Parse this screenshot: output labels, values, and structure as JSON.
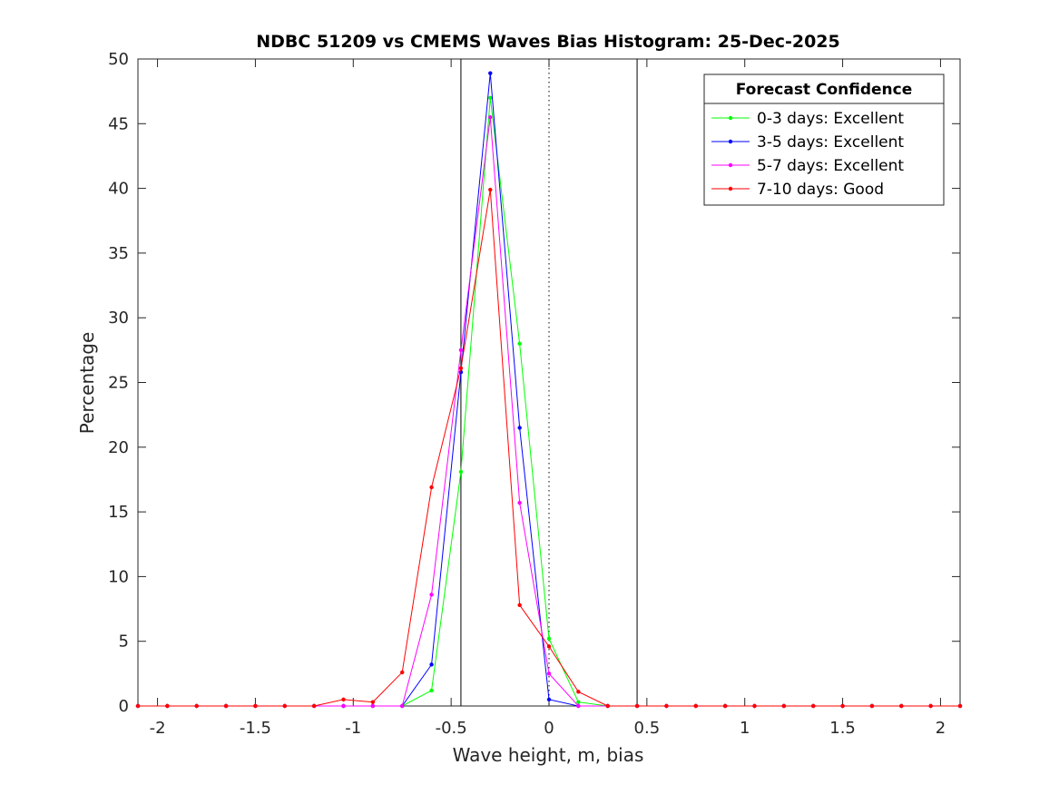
{
  "chart_data": {
    "type": "line",
    "title": "NDBC 51209 vs CMEMS Waves Bias Histogram: 25-Dec-2025",
    "xlabel": "Wave height, m, bias",
    "ylabel": "Percentage",
    "xlim": [
      -2.1,
      2.1
    ],
    "ylim": [
      0,
      50
    ],
    "xticks": [
      -2,
      -1.5,
      -1,
      -0.5,
      0,
      0.5,
      1,
      1.5,
      2
    ],
    "xtick_labels": [
      "-2",
      "-1.5",
      "-1",
      "-0.5",
      "0",
      "0.5",
      "1",
      "1.5",
      "2"
    ],
    "yticks": [
      0,
      5,
      10,
      15,
      20,
      25,
      30,
      35,
      40,
      45,
      50
    ],
    "ytick_labels": [
      "0",
      "5",
      "10",
      "15",
      "20",
      "25",
      "30",
      "35",
      "40",
      "45",
      "50"
    ],
    "vertical_lines": [
      {
        "x": -0.45,
        "style": "solid"
      },
      {
        "x": 0,
        "style": "dotted"
      },
      {
        "x": 0.45,
        "style": "solid"
      }
    ],
    "legend": {
      "title": "Forecast Confidence",
      "position": "top-right"
    },
    "x": [
      -2.1,
      -1.95,
      -1.8,
      -1.65,
      -1.5,
      -1.35,
      -1.2,
      -1.05,
      -0.9,
      -0.75,
      -0.6,
      -0.45,
      -0.3,
      -0.15,
      0,
      0.15,
      0.3,
      0.45,
      0.6,
      0.75,
      0.9,
      1.05,
      1.2,
      1.35,
      1.5,
      1.65,
      1.8,
      1.95,
      2.1
    ],
    "series": [
      {
        "name": "0-3 days: Excellent",
        "color": "#00ff00",
        "values": [
          0,
          0,
          0,
          0,
          0,
          0,
          0,
          0,
          0,
          0,
          1.2,
          18.1,
          47.0,
          28.0,
          5.2,
          0.3,
          0,
          0,
          0,
          0,
          0,
          0,
          0,
          0,
          0,
          0,
          0,
          0,
          0
        ]
      },
      {
        "name": "3-5 days: Excellent",
        "color": "#0000ff",
        "values": [
          0,
          0,
          0,
          0,
          0,
          0,
          0,
          0,
          0,
          0,
          3.2,
          25.8,
          48.9,
          21.5,
          0.5,
          0,
          0,
          0,
          0,
          0,
          0,
          0,
          0,
          0,
          0,
          0,
          0,
          0,
          0
        ]
      },
      {
        "name": "5-7 days: Excellent",
        "color": "#ff00ff",
        "values": [
          0,
          0,
          0,
          0,
          0,
          0,
          0,
          0,
          0,
          0,
          8.6,
          27.5,
          45.5,
          15.7,
          2.5,
          0,
          0,
          0,
          0,
          0,
          0,
          0,
          0,
          0,
          0,
          0,
          0,
          0,
          0
        ]
      },
      {
        "name": "7-10 days: Good",
        "color": "#ff0000",
        "values": [
          0,
          0,
          0,
          0,
          0,
          0,
          0,
          0.5,
          0.3,
          2.6,
          16.9,
          26.1,
          39.9,
          7.8,
          4.6,
          1.1,
          0,
          0,
          0,
          0,
          0,
          0,
          0,
          0,
          0,
          0,
          0,
          0,
          0
        ]
      }
    ]
  }
}
